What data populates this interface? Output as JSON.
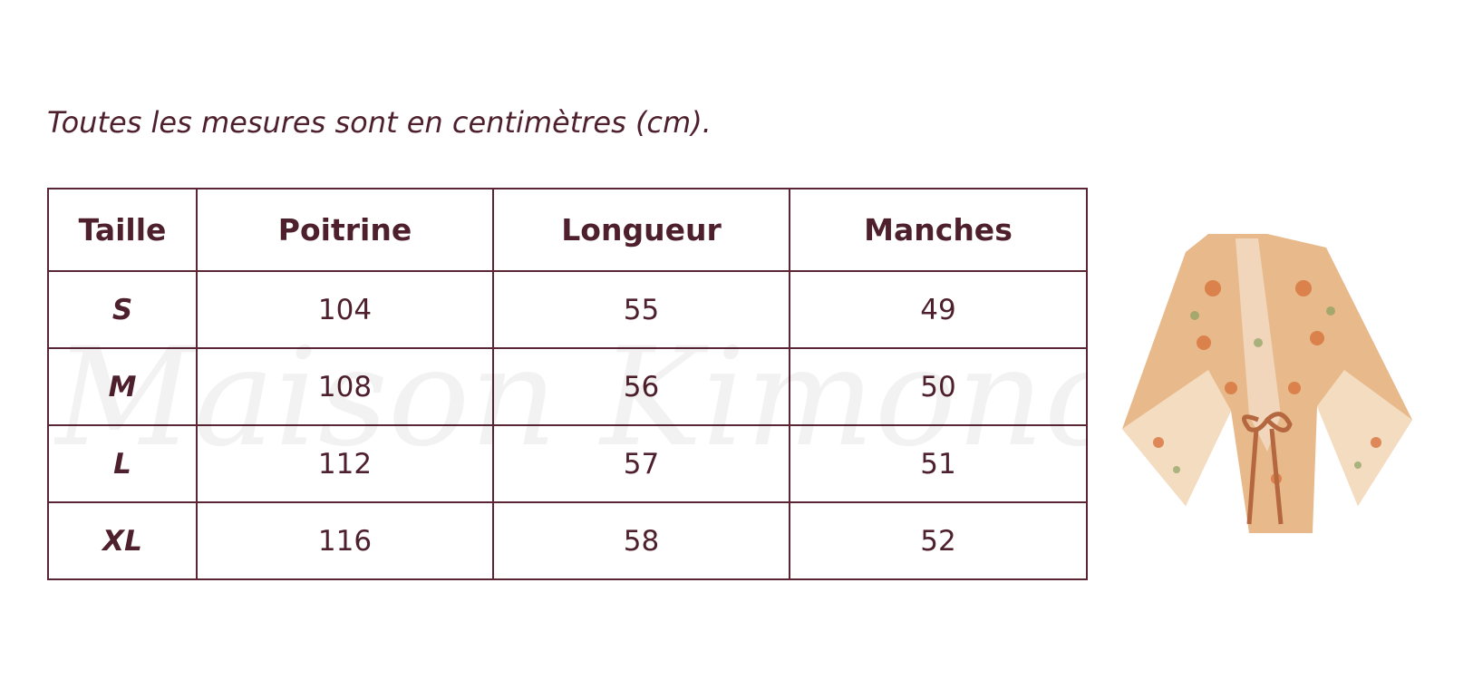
{
  "note": "Toutes les mesures sont en centimètres (cm).",
  "watermark": "Maison Kimono",
  "table": {
    "header": [
      "Taille",
      "Poitrine",
      "Longueur",
      "Manches"
    ],
    "rows": [
      [
        "S",
        104,
        55,
        49
      ],
      [
        "M",
        108,
        56,
        50
      ],
      [
        "L",
        112,
        57,
        51
      ],
      [
        "XL",
        116,
        58,
        52
      ]
    ]
  }
}
